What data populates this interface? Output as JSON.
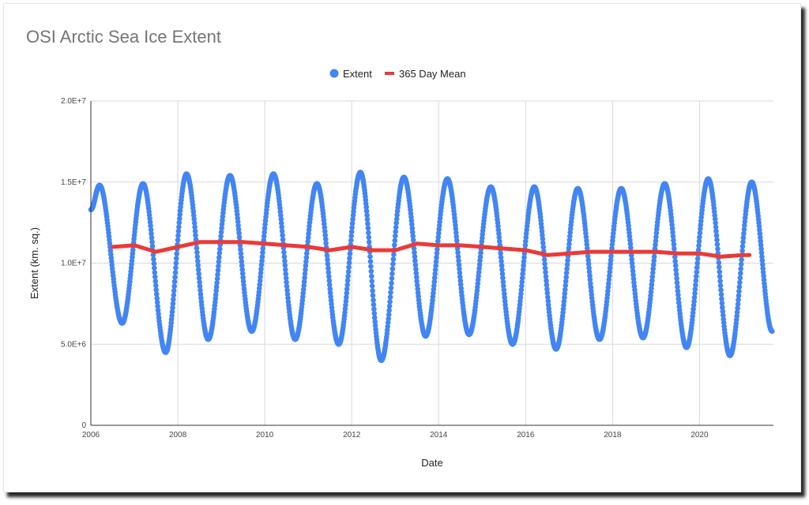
{
  "chart_data": {
    "type": "scatter",
    "title": "OSI Arctic Sea Ice Extent",
    "xlabel": "Date",
    "ylabel": "Extent (km. sq.)",
    "xlim": [
      2006,
      2021.7
    ],
    "ylim": [
      0,
      20000000
    ],
    "y_ticks": [
      0,
      5000000,
      10000000,
      15000000,
      20000000
    ],
    "y_tick_labels": [
      "0",
      "5.0E+6",
      "1.0E+7",
      "1.5E+7",
      "2.0E+7"
    ],
    "x_ticks": [
      2006,
      2008,
      2010,
      2012,
      2014,
      2016,
      2018,
      2020
    ],
    "x_tick_labels": [
      "2006",
      "2008",
      "2010",
      "2012",
      "2014",
      "2016",
      "2018",
      "2020"
    ],
    "grid": true,
    "legend_position": "top-center",
    "legend": [
      {
        "label": "Extent",
        "marker": "circle",
        "color": "#4285f4"
      },
      {
        "label": "365 Day Mean",
        "marker": "line",
        "color": "#ea3a3a"
      }
    ],
    "series": [
      {
        "name": "Extent",
        "color": "#4285f4",
        "style": "dots",
        "seasonal_points": [
          {
            "x": 2006.0,
            "y": 13300000
          },
          {
            "x": 2006.2,
            "y": 14800000
          },
          {
            "x": 2006.72,
            "y": 6300000
          },
          {
            "x": 2007.2,
            "y": 14900000
          },
          {
            "x": 2007.72,
            "y": 4500000
          },
          {
            "x": 2008.2,
            "y": 15500000
          },
          {
            "x": 2008.7,
            "y": 5300000
          },
          {
            "x": 2009.2,
            "y": 15400000
          },
          {
            "x": 2009.7,
            "y": 5800000
          },
          {
            "x": 2010.2,
            "y": 15500000
          },
          {
            "x": 2010.7,
            "y": 5300000
          },
          {
            "x": 2011.2,
            "y": 14900000
          },
          {
            "x": 2011.7,
            "y": 5000000
          },
          {
            "x": 2012.2,
            "y": 15600000
          },
          {
            "x": 2012.68,
            "y": 4000000
          },
          {
            "x": 2013.2,
            "y": 15300000
          },
          {
            "x": 2013.7,
            "y": 5500000
          },
          {
            "x": 2014.2,
            "y": 15200000
          },
          {
            "x": 2014.7,
            "y": 5600000
          },
          {
            "x": 2015.2,
            "y": 14700000
          },
          {
            "x": 2015.7,
            "y": 5000000
          },
          {
            "x": 2016.2,
            "y": 14700000
          },
          {
            "x": 2016.7,
            "y": 4700000
          },
          {
            "x": 2017.2,
            "y": 14600000
          },
          {
            "x": 2017.7,
            "y": 5300000
          },
          {
            "x": 2018.2,
            "y": 14600000
          },
          {
            "x": 2018.7,
            "y": 5400000
          },
          {
            "x": 2019.2,
            "y": 14900000
          },
          {
            "x": 2019.7,
            "y": 4800000
          },
          {
            "x": 2020.2,
            "y": 15200000
          },
          {
            "x": 2020.7,
            "y": 4300000
          },
          {
            "x": 2021.2,
            "y": 15000000
          },
          {
            "x": 2021.67,
            "y": 5800000
          }
        ]
      },
      {
        "name": "365 Day Mean",
        "color": "#ea3a3a",
        "style": "line",
        "points": [
          {
            "x": 2006.5,
            "y": 11000000
          },
          {
            "x": 2007.0,
            "y": 11100000
          },
          {
            "x": 2007.5,
            "y": 10700000
          },
          {
            "x": 2008.0,
            "y": 11000000
          },
          {
            "x": 2008.5,
            "y": 11300000
          },
          {
            "x": 2009.0,
            "y": 11300000
          },
          {
            "x": 2009.5,
            "y": 11300000
          },
          {
            "x": 2010.0,
            "y": 11200000
          },
          {
            "x": 2010.5,
            "y": 11100000
          },
          {
            "x": 2011.0,
            "y": 11000000
          },
          {
            "x": 2011.5,
            "y": 10800000
          },
          {
            "x": 2012.0,
            "y": 11000000
          },
          {
            "x": 2012.5,
            "y": 10800000
          },
          {
            "x": 2013.0,
            "y": 10800000
          },
          {
            "x": 2013.5,
            "y": 11200000
          },
          {
            "x": 2014.0,
            "y": 11100000
          },
          {
            "x": 2014.5,
            "y": 11100000
          },
          {
            "x": 2015.0,
            "y": 11000000
          },
          {
            "x": 2015.5,
            "y": 10900000
          },
          {
            "x": 2016.0,
            "y": 10800000
          },
          {
            "x": 2016.5,
            "y": 10500000
          },
          {
            "x": 2017.0,
            "y": 10600000
          },
          {
            "x": 2017.5,
            "y": 10700000
          },
          {
            "x": 2018.0,
            "y": 10700000
          },
          {
            "x": 2018.5,
            "y": 10700000
          },
          {
            "x": 2019.0,
            "y": 10700000
          },
          {
            "x": 2019.5,
            "y": 10600000
          },
          {
            "x": 2020.0,
            "y": 10600000
          },
          {
            "x": 2020.5,
            "y": 10400000
          },
          {
            "x": 2021.0,
            "y": 10500000
          },
          {
            "x": 2021.15,
            "y": 10500000
          }
        ]
      }
    ]
  }
}
